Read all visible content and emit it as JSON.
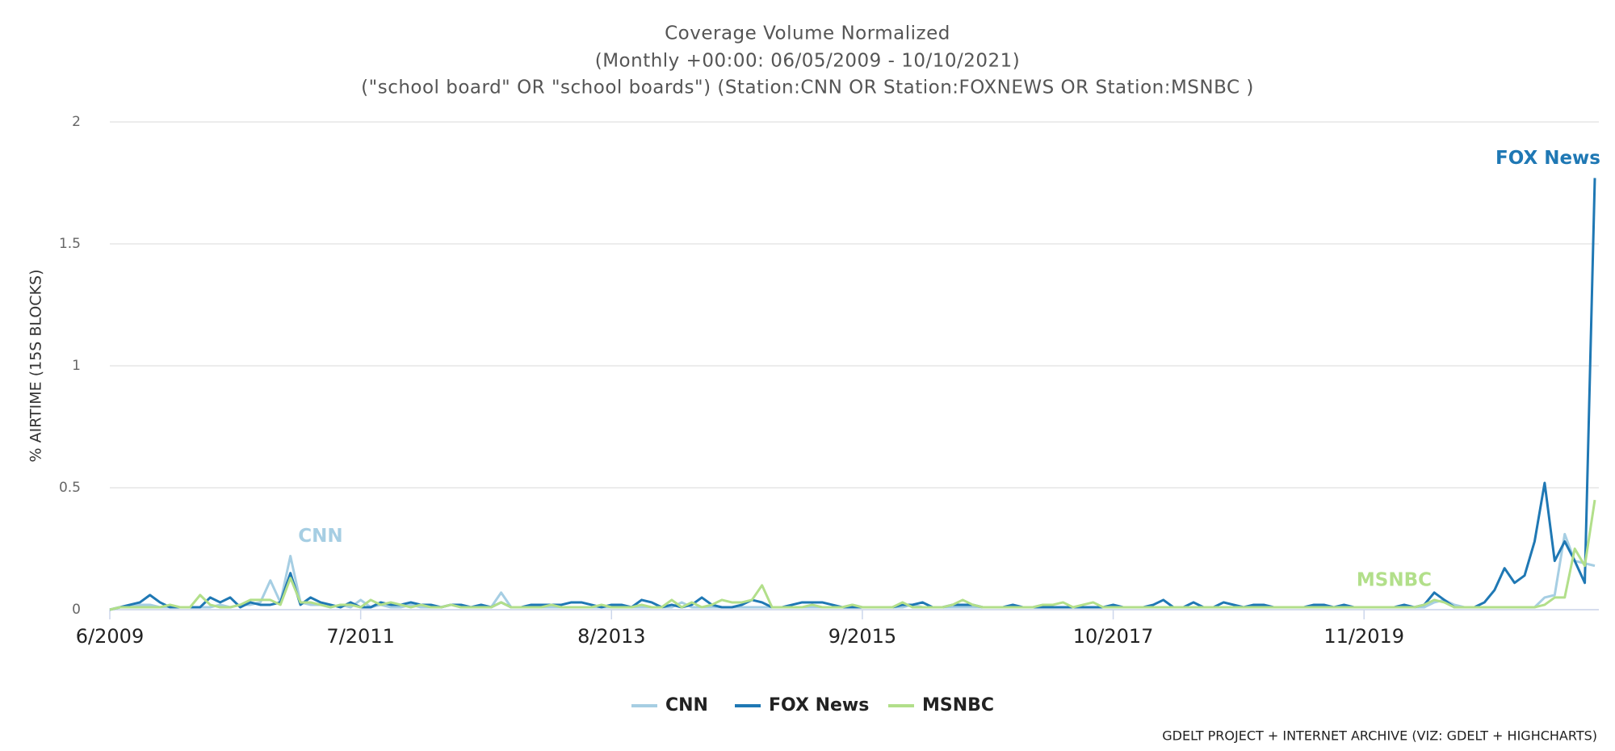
{
  "chart_data": {
    "type": "line",
    "title": "Coverage Volume Normalized",
    "subtitle": "(Monthly +00:00: 06/05/2009 - 10/10/2021)",
    "query": "(\"school board\" OR \"school boards\") (Station:CNN OR Station:FOXNEWS OR Station:MSNBC )",
    "ylabel": "% AIRTIME (15S BLOCKS)",
    "credit": "GDELT PROJECT + INTERNET ARCHIVE (VIZ: GDELT + HIGHCHARTS)",
    "annotations": [
      "CNN",
      "FOX News",
      "MSNBC"
    ],
    "ylim": [
      0,
      2
    ],
    "yticks": [
      0,
      0.5,
      1,
      1.5,
      2
    ],
    "grid": true,
    "legend": "bottom",
    "categories": [
      "6/2009",
      null,
      null,
      null,
      null,
      null,
      null,
      null,
      null,
      null,
      null,
      null,
      null,
      null,
      null,
      null,
      null,
      null,
      null,
      null,
      null,
      null,
      null,
      null,
      null,
      "7/2011",
      null,
      null,
      null,
      null,
      null,
      null,
      null,
      null,
      null,
      null,
      null,
      null,
      null,
      null,
      null,
      null,
      null,
      null,
      null,
      null,
      null,
      null,
      null,
      null,
      "8/2013",
      null,
      null,
      null,
      null,
      null,
      null,
      null,
      null,
      null,
      null,
      null,
      null,
      null,
      null,
      null,
      null,
      null,
      null,
      null,
      null,
      null,
      null,
      null,
      null,
      "9/2015",
      null,
      null,
      null,
      null,
      null,
      null,
      null,
      null,
      null,
      null,
      null,
      null,
      null,
      null,
      null,
      null,
      null,
      null,
      null,
      null,
      null,
      null,
      null,
      null,
      "10/2017",
      null,
      null,
      null,
      null,
      null,
      null,
      null,
      null,
      null,
      null,
      null,
      null,
      null,
      null,
      null,
      null,
      null,
      null,
      null,
      null,
      null,
      null,
      null,
      null,
      "11/2019",
      null,
      null,
      null,
      null,
      null,
      null,
      null,
      null,
      null,
      null,
      null,
      null,
      null,
      null,
      null,
      null,
      null,
      null,
      null,
      null,
      null,
      null,
      null
    ],
    "series": [
      {
        "name": "CNN",
        "color": "#a6cee3",
        "values": [
          0,
          0.01,
          0.01,
          0.02,
          0.02,
          0.01,
          0.01,
          0.01,
          0.01,
          0.01,
          0.01,
          0.02,
          0.01,
          0.02,
          0.02,
          0.03,
          0.12,
          0.03,
          0.22,
          0.03,
          0.02,
          0.02,
          0.01,
          0.02,
          0.01,
          0.04,
          0.01,
          0.02,
          0.01,
          0.01,
          0.02,
          0.01,
          0.01,
          0.01,
          0.02,
          0.01,
          0.01,
          0.02,
          0.01,
          0.07,
          0.01,
          0.01,
          0.01,
          0.01,
          0.01,
          0.01,
          0.01,
          0.01,
          0.01,
          0.01,
          0.01,
          0.01,
          0.01,
          0.01,
          0.01,
          0.01,
          0.01,
          0.03,
          0.01,
          0.01,
          0.01,
          0.01,
          0.01,
          0.01,
          0.01,
          0.01,
          0.01,
          0.01,
          0.01,
          0.01,
          0.01,
          0.01,
          0.01,
          0.01,
          0.02,
          0.01,
          0.01,
          0.01,
          0.01,
          0.01,
          0.02,
          0.01,
          0.01,
          0.01,
          0.01,
          0.01,
          0.01,
          0.01,
          0.01,
          0.01,
          0.01,
          0.01,
          0.01,
          0.02,
          0.01,
          0.01,
          0.01,
          0.01,
          0.01,
          0.01,
          0.01,
          0.01,
          0.01,
          0.01,
          0.01,
          0.01,
          0.01,
          0.01,
          0.01,
          0.01,
          0.01,
          0.01,
          0.01,
          0.01,
          0.01,
          0.01,
          0.01,
          0.01,
          0.01,
          0.01,
          0.01,
          0.01,
          0.01,
          0.01,
          0.01,
          0.01,
          0.01,
          0.01,
          0.01,
          0.01,
          0.01,
          0.01,
          0.03,
          0.04,
          0.02,
          0.01,
          0.01,
          0.01,
          0.01,
          0.01,
          0.01,
          0.01,
          0.01,
          0.05,
          0.06,
          0.31,
          0.2,
          0.19,
          0.18
        ]
      },
      {
        "name": "FOX News",
        "color": "#1f78b4",
        "values": [
          0,
          0.01,
          0.02,
          0.03,
          0.06,
          0.03,
          0.01,
          0.01,
          0.01,
          0.01,
          0.05,
          0.03,
          0.05,
          0.01,
          0.03,
          0.02,
          0.02,
          0.03,
          0.15,
          0.02,
          0.05,
          0.03,
          0.02,
          0.01,
          0.03,
          0.01,
          0.01,
          0.03,
          0.02,
          0.02,
          0.03,
          0.02,
          0.02,
          0.01,
          0.02,
          0.02,
          0.01,
          0.02,
          0.01,
          0.03,
          0.01,
          0.01,
          0.02,
          0.02,
          0.02,
          0.02,
          0.03,
          0.03,
          0.02,
          0.01,
          0.02,
          0.02,
          0.01,
          0.04,
          0.03,
          0.01,
          0.02,
          0.01,
          0.02,
          0.05,
          0.02,
          0.01,
          0.01,
          0.02,
          0.04,
          0.03,
          0.01,
          0.01,
          0.02,
          0.03,
          0.03,
          0.03,
          0.02,
          0.01,
          0.01,
          0.01,
          0.01,
          0.01,
          0.01,
          0.02,
          0.02,
          0.03,
          0.01,
          0.01,
          0.02,
          0.02,
          0.02,
          0.01,
          0.01,
          0.01,
          0.02,
          0.01,
          0.01,
          0.01,
          0.01,
          0.01,
          0.01,
          0.01,
          0.01,
          0.01,
          0.02,
          0.01,
          0.01,
          0.01,
          0.02,
          0.04,
          0.01,
          0.01,
          0.03,
          0.01,
          0.01,
          0.03,
          0.02,
          0.01,
          0.02,
          0.02,
          0.01,
          0.01,
          0.01,
          0.01,
          0.02,
          0.02,
          0.01,
          0.02,
          0.01,
          0.01,
          0.01,
          0.01,
          0.01,
          0.02,
          0.01,
          0.02,
          0.07,
          0.04,
          0.01,
          0.01,
          0.01,
          0.03,
          0.08,
          0.17,
          0.11,
          0.14,
          0.28,
          0.52,
          0.2,
          0.28,
          0.2,
          0.11,
          1.77
        ]
      },
      {
        "name": "MSNBC",
        "color": "#b2df8a",
        "values": [
          0,
          0.01,
          0.01,
          0.01,
          0.01,
          0.01,
          0.02,
          0.01,
          0.01,
          0.06,
          0.02,
          0.01,
          0.01,
          0.02,
          0.04,
          0.04,
          0.04,
          0.02,
          0.13,
          0.03,
          0.03,
          0.02,
          0.01,
          0.02,
          0.02,
          0.01,
          0.04,
          0.02,
          0.03,
          0.02,
          0.01,
          0.02,
          0.01,
          0.01,
          0.02,
          0.01,
          0.01,
          0.01,
          0.01,
          0.03,
          0.01,
          0.01,
          0.01,
          0.01,
          0.02,
          0.01,
          0.01,
          0.01,
          0.01,
          0.02,
          0.01,
          0.01,
          0.01,
          0.02,
          0.01,
          0.01,
          0.04,
          0.01,
          0.03,
          0.01,
          0.02,
          0.04,
          0.03,
          0.03,
          0.04,
          0.1,
          0.01,
          0.01,
          0.01,
          0.01,
          0.02,
          0.01,
          0.01,
          0.01,
          0.02,
          0.01,
          0.01,
          0.01,
          0.01,
          0.03,
          0.01,
          0.01,
          0.01,
          0.01,
          0.02,
          0.04,
          0.02,
          0.01,
          0.01,
          0.01,
          0.01,
          0.01,
          0.01,
          0.02,
          0.02,
          0.03,
          0.01,
          0.02,
          0.03,
          0.01,
          0.01,
          0.01,
          0.01,
          0.01,
          0.01,
          0.01,
          0.01,
          0.01,
          0.01,
          0.01,
          0.01,
          0.01,
          0.01,
          0.01,
          0.01,
          0.01,
          0.01,
          0.01,
          0.01,
          0.01,
          0.01,
          0.01,
          0.01,
          0.01,
          0.01,
          0.01,
          0.01,
          0.01,
          0.01,
          0.01,
          0.01,
          0.02,
          0.04,
          0.03,
          0.01,
          0.01,
          0.01,
          0.01,
          0.01,
          0.01,
          0.01,
          0.01,
          0.01,
          0.02,
          0.05,
          0.05,
          0.25,
          0.18,
          0.45
        ]
      }
    ]
  }
}
